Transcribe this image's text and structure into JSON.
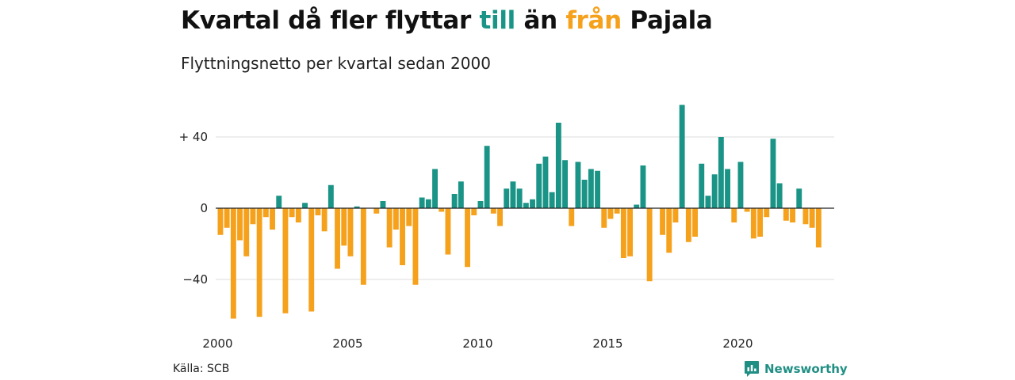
{
  "title": {
    "prefix": "Kvartal då fler flyttar ",
    "word_in": "till",
    "middle": " än ",
    "word_out": "från",
    "suffix": " Pajala"
  },
  "subtitle": "Flyttningsnetto per kvartal sedan 2000",
  "source": "Källa: SCB",
  "brand": {
    "name": "Newsworthy",
    "icon": "newsworthy-logo-icon"
  },
  "colors": {
    "positive": "#1a9486",
    "negative": "#f5a11c",
    "grid": "#dddddd",
    "zero": "#222222",
    "text": "#111111"
  },
  "chart_data": {
    "type": "bar",
    "title": "Kvartal då fler flyttar till än från Pajala",
    "subtitle": "Flyttningsnetto per kvartal sedan 2000",
    "xlabel": "",
    "ylabel": "",
    "x_start_year": 2000,
    "periods_per_year": 4,
    "x_ticks": [
      "2000",
      "2005",
      "2010",
      "2015",
      "2020"
    ],
    "y_ticks": [
      {
        "value": 40,
        "label": "+ 40"
      },
      {
        "value": 0,
        "label": "0"
      },
      {
        "value": -40,
        "label": "−40"
      }
    ],
    "ylim": [
      -64,
      60
    ],
    "grid": true,
    "values": [
      -15,
      -11,
      -62,
      -18,
      -27,
      -9,
      -61,
      -5,
      -12,
      7,
      -59,
      -5,
      -8,
      3,
      -58,
      -4,
      -13,
      13,
      -34,
      -21,
      -27,
      1,
      -43,
      0,
      -3,
      4,
      -22,
      -12,
      -32,
      -10,
      -43,
      6,
      5,
      22,
      -2,
      -26,
      8,
      15,
      -33,
      -4,
      4,
      35,
      -3,
      -10,
      11,
      15,
      11,
      3,
      5,
      25,
      29,
      9,
      48,
      27,
      -10,
      26,
      16,
      22,
      21,
      -11,
      -6,
      -3,
      -28,
      -27,
      2,
      24,
      -41,
      0,
      -15,
      -25,
      -8,
      58,
      -19,
      -16,
      25,
      7,
      19,
      40,
      22,
      -8,
      26,
      -2,
      -17,
      -16,
      -5,
      39,
      14,
      -7,
      -8,
      11,
      -9,
      -11,
      -22
    ]
  }
}
